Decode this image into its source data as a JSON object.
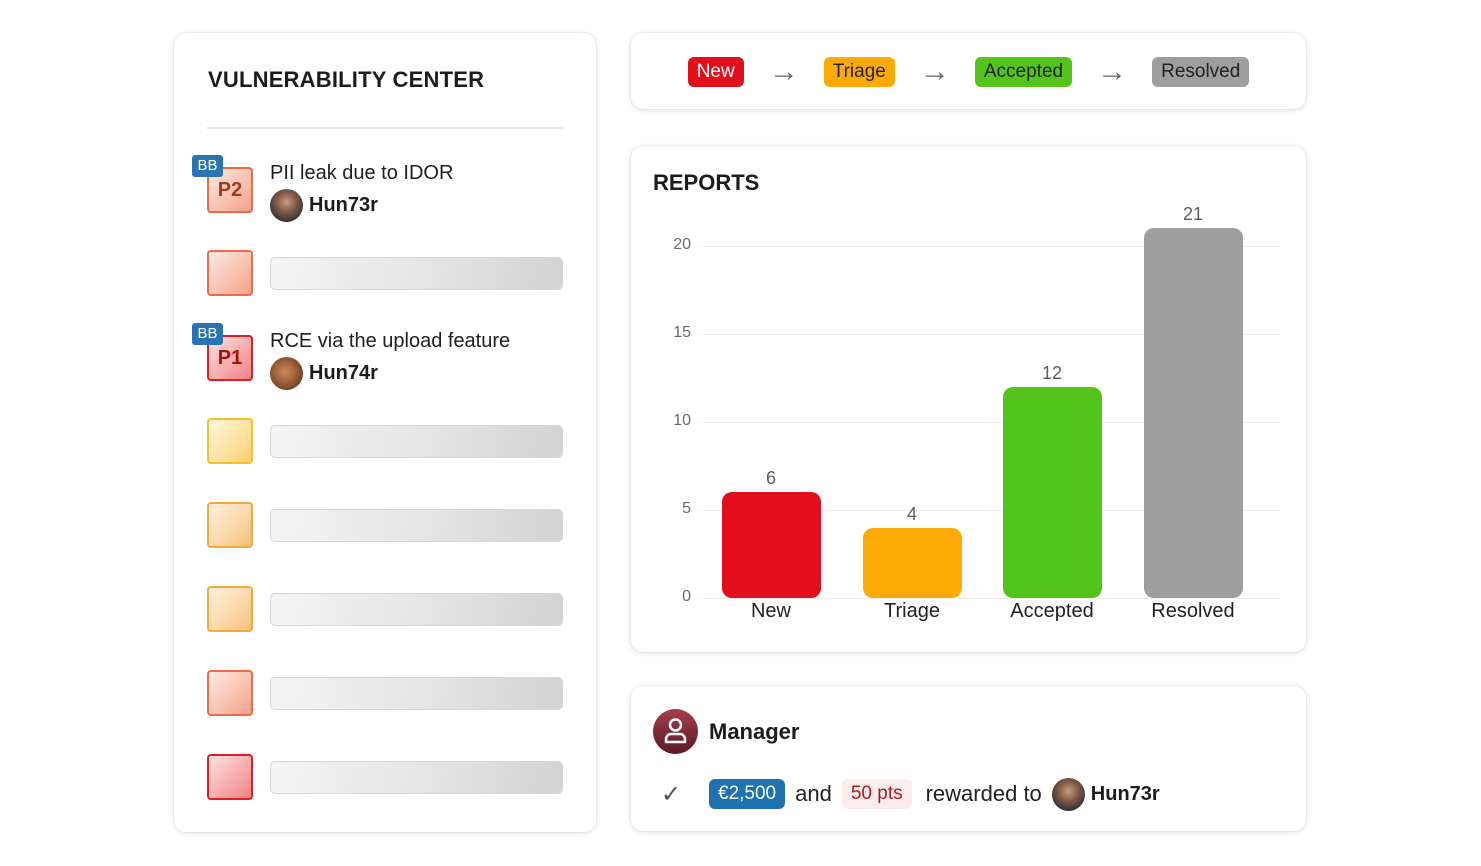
{
  "vulnerability_center": {
    "title": "VULNERABILITY CENTER",
    "items": [
      {
        "severity_label": "P2",
        "severity_color": "salmon",
        "badge": "BB",
        "title": "PII leak due to IDOR",
        "user": "Hun73r",
        "avatar": "hun73r"
      },
      {
        "severity_label": "",
        "severity_color": "salmon",
        "placeholder": true
      },
      {
        "severity_label": "P1",
        "severity_color": "red",
        "badge": "BB",
        "title": "RCE via the upload feature",
        "user": "Hun74r",
        "avatar": "hun74r"
      },
      {
        "severity_label": "",
        "severity_color": "yellow",
        "placeholder": true
      },
      {
        "severity_label": "",
        "severity_color": "orange",
        "placeholder": true
      },
      {
        "severity_label": "",
        "severity_color": "orange",
        "placeholder": true
      },
      {
        "severity_label": "",
        "severity_color": "salmon",
        "placeholder": true
      },
      {
        "severity_label": "",
        "severity_color": "red",
        "placeholder": true
      }
    ]
  },
  "workflow": {
    "steps": [
      {
        "label": "New",
        "color": "#e30e1b"
      },
      {
        "label": "Triage",
        "color": "#fdaa06"
      },
      {
        "label": "Accepted",
        "color": "#52c41a"
      },
      {
        "label": "Resolved",
        "color": "#9e9e9e"
      }
    ],
    "arrow_icon": "arrow-right-icon"
  },
  "reports": {
    "title": "REPORTS"
  },
  "chart_data": {
    "type": "bar",
    "title": "REPORTS",
    "categories": [
      "New",
      "Triage",
      "Accepted",
      "Resolved"
    ],
    "values": [
      6,
      4,
      12,
      21
    ],
    "colors": [
      "#e30e1b",
      "#fdaa06",
      "#52c41a",
      "#9e9e9e"
    ],
    "yticks": [
      0,
      5,
      10,
      15,
      20
    ],
    "ylim": [
      0,
      21
    ],
    "xlabel": "",
    "ylabel": "",
    "grid": true,
    "data_labels": true
  },
  "manager": {
    "name": "Manager",
    "amount": "€2,500",
    "and_text": "and",
    "points": "50 pts",
    "rewarded_text": "rewarded to",
    "recipient": "Hun73r"
  }
}
